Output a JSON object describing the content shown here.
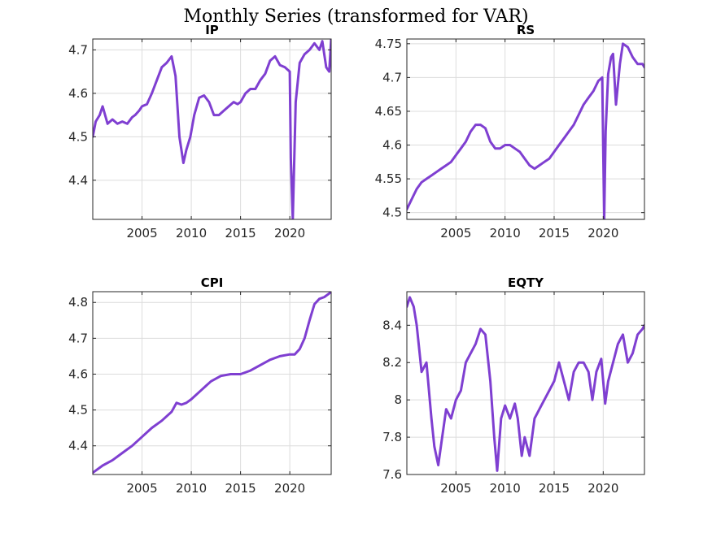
{
  "figure": {
    "suptitle": "Monthly Series (transformed for VAR)"
  },
  "style": {
    "line_color": "#7f3fd1",
    "grid_color": "#dcdcdc",
    "axis_color": "#262626"
  },
  "chart_data": [
    {
      "type": "line",
      "title": "IP",
      "xlim": [
        2000.0,
        2024.2
      ],
      "ylim": [
        4.31,
        4.725
      ],
      "xticks": [
        2005,
        2010,
        2015,
        2020
      ],
      "yticks": [
        4.4,
        4.5,
        4.6,
        4.7
      ],
      "ytick_labels": [
        "4.4",
        "4.5",
        "4.6",
        "4.7"
      ],
      "grid": true,
      "x": [
        2000.0,
        2000.3,
        2000.7,
        2001.0,
        2001.5,
        2002.0,
        2002.5,
        2003.0,
        2003.5,
        2004.0,
        2004.3,
        2004.7,
        2005.0,
        2005.5,
        2006.0,
        2006.5,
        2007.0,
        2007.5,
        2008.0,
        2008.4,
        2008.8,
        2009.2,
        2009.5,
        2009.9,
        2010.3,
        2010.8,
        2011.3,
        2011.8,
        2012.3,
        2012.8,
        2013.3,
        2013.8,
        2014.3,
        2014.7,
        2015.0,
        2015.5,
        2016.0,
        2016.5,
        2017.0,
        2017.5,
        2018.0,
        2018.5,
        2019.0,
        2019.5,
        2020.0,
        2020.1,
        2020.3,
        2020.6,
        2021.0,
        2021.5,
        2022.0,
        2022.5,
        2023.0,
        2023.3,
        2023.7,
        2024.0,
        2024.2
      ],
      "values": [
        4.5,
        4.535,
        4.55,
        4.57,
        4.53,
        4.54,
        4.53,
        4.535,
        4.53,
        4.545,
        4.55,
        4.56,
        4.57,
        4.575,
        4.6,
        4.63,
        4.66,
        4.67,
        4.685,
        4.64,
        4.5,
        4.44,
        4.47,
        4.5,
        4.55,
        4.59,
        4.595,
        4.58,
        4.55,
        4.55,
        4.56,
        4.57,
        4.58,
        4.575,
        4.58,
        4.6,
        4.61,
        4.61,
        4.63,
        4.645,
        4.675,
        4.685,
        4.665,
        4.66,
        4.65,
        4.45,
        4.31,
        4.58,
        4.67,
        4.69,
        4.7,
        4.715,
        4.7,
        4.72,
        4.66,
        4.65,
        4.725
      ]
    },
    {
      "type": "line",
      "title": "RS",
      "xlim": [
        2000.0,
        2024.2
      ],
      "ylim": [
        4.49,
        4.757
      ],
      "xticks": [
        2005,
        2010,
        2015,
        2020
      ],
      "yticks": [
        4.5,
        4.55,
        4.6,
        4.65,
        4.7,
        4.75
      ],
      "ytick_labels": [
        "4.5",
        "4.55",
        "4.6",
        "4.65",
        "4.7",
        "4.75"
      ],
      "grid": true,
      "x": [
        2000.0,
        2000.5,
        2001.0,
        2001.5,
        2002.0,
        2002.5,
        2003.0,
        2003.5,
        2004.0,
        2004.5,
        2005.0,
        2005.5,
        2006.0,
        2006.5,
        2007.0,
        2007.5,
        2008.0,
        2008.5,
        2009.0,
        2009.5,
        2010.0,
        2010.5,
        2011.0,
        2011.5,
        2012.0,
        2012.5,
        2013.0,
        2013.5,
        2014.0,
        2014.5,
        2015.0,
        2015.5,
        2016.0,
        2016.5,
        2017.0,
        2017.5,
        2018.0,
        2018.5,
        2019.0,
        2019.5,
        2019.9,
        2020.1,
        2020.25,
        2020.5,
        2020.8,
        2021.0,
        2021.3,
        2021.7,
        2022.0,
        2022.5,
        2023.0,
        2023.5,
        2024.0,
        2024.2
      ],
      "values": [
        4.505,
        4.52,
        4.535,
        4.545,
        4.55,
        4.555,
        4.56,
        4.565,
        4.57,
        4.575,
        4.585,
        4.595,
        4.605,
        4.62,
        4.63,
        4.63,
        4.625,
        4.605,
        4.595,
        4.595,
        4.6,
        4.6,
        4.595,
        4.59,
        4.58,
        4.57,
        4.565,
        4.57,
        4.575,
        4.58,
        4.59,
        4.6,
        4.61,
        4.62,
        4.63,
        4.645,
        4.66,
        4.67,
        4.68,
        4.695,
        4.7,
        4.49,
        4.62,
        4.705,
        4.73,
        4.735,
        4.66,
        4.72,
        4.75,
        4.745,
        4.73,
        4.72,
        4.72,
        4.715
      ]
    },
    {
      "type": "line",
      "title": "CPI",
      "xlim": [
        2000.0,
        2024.2
      ],
      "ylim": [
        4.32,
        4.83
      ],
      "xticks": [
        2005,
        2010,
        2015,
        2020
      ],
      "yticks": [
        4.4,
        4.5,
        4.6,
        4.7,
        4.8
      ],
      "ytick_labels": [
        "4.4",
        "4.5",
        "4.6",
        "4.7",
        "4.8"
      ],
      "grid": true,
      "x": [
        2000.0,
        2001.0,
        2002.0,
        2003.0,
        2004.0,
        2005.0,
        2006.0,
        2007.0,
        2008.0,
        2008.5,
        2009.0,
        2009.5,
        2010.0,
        2011.0,
        2012.0,
        2013.0,
        2014.0,
        2015.0,
        2016.0,
        2017.0,
        2018.0,
        2019.0,
        2020.0,
        2020.5,
        2021.0,
        2021.5,
        2022.0,
        2022.5,
        2023.0,
        2023.5,
        2024.0,
        2024.2
      ],
      "values": [
        4.325,
        4.345,
        4.36,
        4.38,
        4.4,
        4.425,
        4.45,
        4.47,
        4.495,
        4.52,
        4.515,
        4.52,
        4.53,
        4.555,
        4.58,
        4.595,
        4.6,
        4.6,
        4.61,
        4.625,
        4.64,
        4.65,
        4.655,
        4.655,
        4.67,
        4.7,
        4.75,
        4.795,
        4.81,
        4.815,
        4.825,
        4.83
      ]
    },
    {
      "type": "line",
      "title": "EQTY",
      "xlim": [
        2000.0,
        2024.2
      ],
      "ylim": [
        7.6,
        8.58
      ],
      "xticks": [
        2005,
        2010,
        2015,
        2020
      ],
      "yticks": [
        7.6,
        7.8,
        8.0,
        8.2,
        8.4
      ],
      "ytick_labels": [
        "7.6",
        "7.8",
        "8",
        "8.2",
        "8.4"
      ],
      "grid": true,
      "x": [
        2000.0,
        2000.3,
        2000.7,
        2001.0,
        2001.5,
        2002.0,
        2002.5,
        2002.8,
        2003.2,
        2003.6,
        2004.0,
        2004.5,
        2005.0,
        2005.5,
        2006.0,
        2006.5,
        2007.0,
        2007.5,
        2008.0,
        2008.5,
        2008.9,
        2009.2,
        2009.6,
        2010.0,
        2010.5,
        2011.0,
        2011.3,
        2011.7,
        2012.0,
        2012.5,
        2013.0,
        2013.5,
        2014.0,
        2014.5,
        2015.0,
        2015.5,
        2016.0,
        2016.5,
        2017.0,
        2017.5,
        2018.0,
        2018.5,
        2018.9,
        2019.3,
        2019.8,
        2020.2,
        2020.5,
        2021.0,
        2021.5,
        2022.0,
        2022.5,
        2023.0,
        2023.5,
        2024.0,
        2024.2
      ],
      "values": [
        8.5,
        8.55,
        8.5,
        8.4,
        8.15,
        8.2,
        7.9,
        7.75,
        7.65,
        7.8,
        7.95,
        7.9,
        8.0,
        8.05,
        8.2,
        8.25,
        8.3,
        8.38,
        8.35,
        8.1,
        7.8,
        7.62,
        7.9,
        7.97,
        7.9,
        7.98,
        7.9,
        7.7,
        7.8,
        7.7,
        7.9,
        7.95,
        8.0,
        8.05,
        8.1,
        8.2,
        8.1,
        8.0,
        8.15,
        8.2,
        8.2,
        8.15,
        8.0,
        8.15,
        8.22,
        7.98,
        8.1,
        8.2,
        8.3,
        8.35,
        8.2,
        8.25,
        8.35,
        8.38,
        8.4
      ]
    }
  ]
}
